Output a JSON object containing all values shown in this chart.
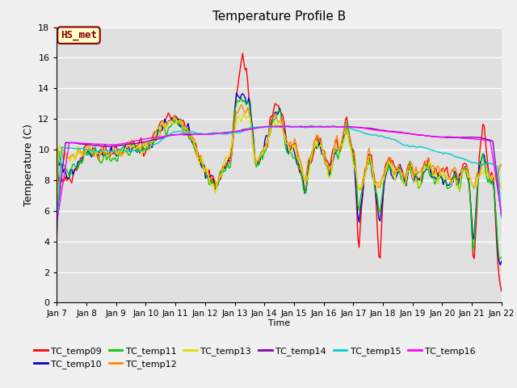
{
  "title": "Temperature Profile B",
  "xlabel": "Time",
  "ylabel": "Temperature (C)",
  "ylim": [
    0,
    18
  ],
  "xlim": [
    0,
    360
  ],
  "fig_facecolor": "#f0f0f0",
  "axes_facecolor": "#e0e0e0",
  "annotation_text": "HS_met",
  "annotation_color": "#8b0000",
  "annotation_bg": "#ffffcc",
  "series_colors": {
    "TC_temp09": "#ff0000",
    "TC_temp10": "#0000cc",
    "TC_temp11": "#00cc00",
    "TC_temp12": "#ff8800",
    "TC_temp13": "#dddd00",
    "TC_temp14": "#8800aa",
    "TC_temp15": "#00cccc",
    "TC_temp16": "#ff00ff"
  },
  "n_points": 360,
  "x_ticks": [
    0,
    24,
    48,
    72,
    96,
    120,
    144,
    168,
    192,
    216,
    240,
    264,
    288,
    312,
    336,
    360
  ],
  "x_tick_labels": [
    "Jan 7",
    "Jan 8",
    "Jan 9",
    "Jan 10",
    "Jan 11",
    "Jan 12",
    "Jan 13",
    "Jan 14",
    "Jan 15",
    "Jan 16",
    "Jan 17",
    "Jan 18",
    "Jan 19",
    "Jan 20",
    "Jan 21",
    "Jan 22"
  ]
}
